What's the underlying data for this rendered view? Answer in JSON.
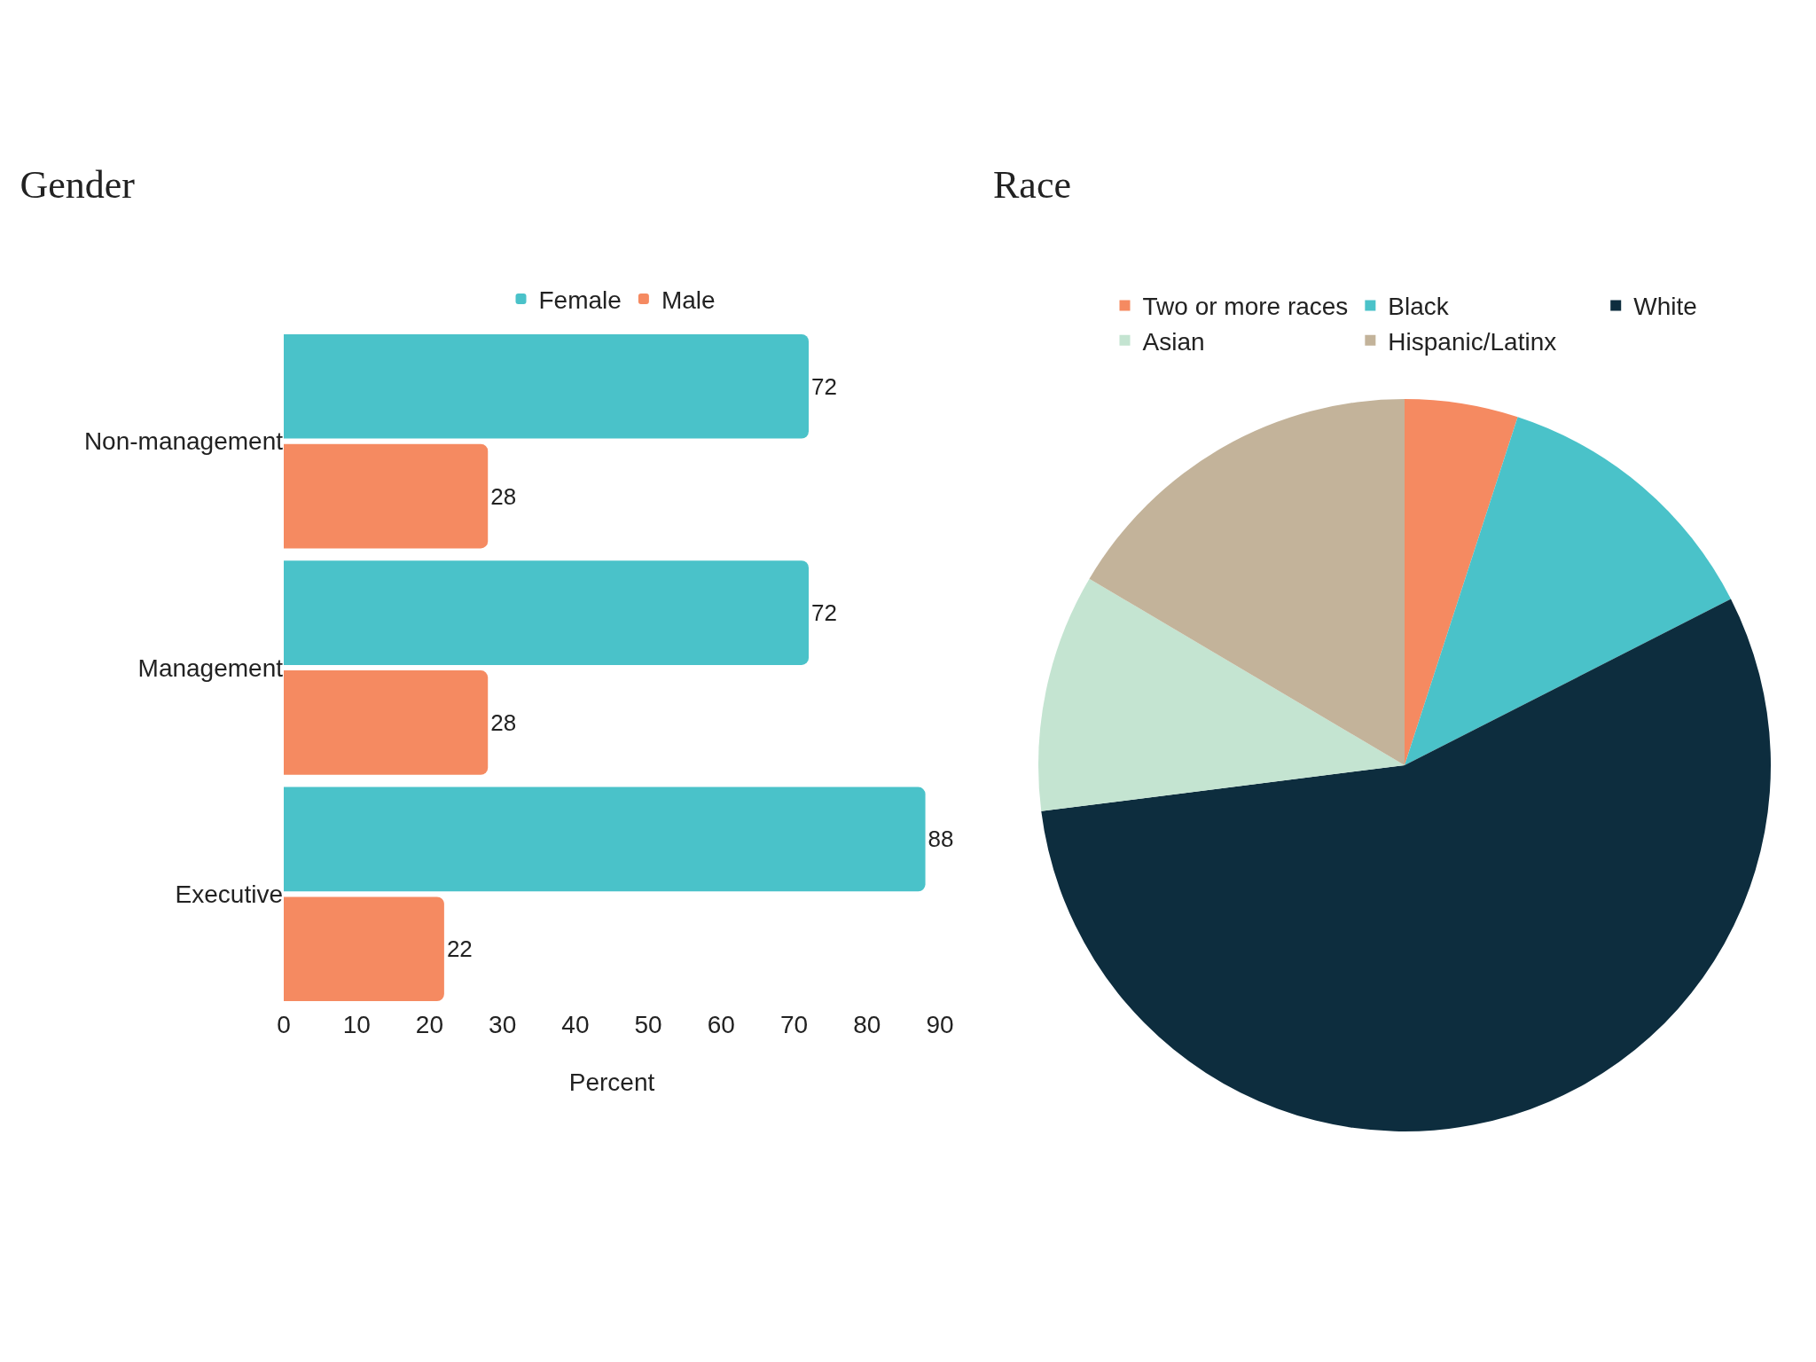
{
  "chart_data": [
    {
      "type": "bar",
      "title": "Gender",
      "orientation": "horizontal",
      "categories": [
        "Non-management",
        "Management",
        "Executive"
      ],
      "series": [
        {
          "name": "Female",
          "color": "#4ac2c9",
          "values": [
            72,
            72,
            88
          ]
        },
        {
          "name": "Male",
          "color": "#f58a61",
          "values": [
            28,
            28,
            22
          ]
        }
      ],
      "xlabel": "Percent",
      "xlim": [
        0,
        90
      ],
      "xticks": [
        0,
        10,
        20,
        30,
        40,
        50,
        60,
        70,
        80,
        90
      ],
      "data_labels": true,
      "grid": false,
      "legend": "top"
    },
    {
      "type": "pie",
      "title": "Race",
      "categories": [
        "Two or more races",
        "Black",
        "White",
        "Asian",
        "Hispanic/Latinx"
      ],
      "values": [
        5,
        12.5,
        55.5,
        10.5,
        16.5
      ],
      "colors": [
        "#f58a61",
        "#4ac2c9",
        "#0d2d3e",
        "#c4e4d1",
        "#c3b39a"
      ],
      "legend": "top"
    }
  ]
}
